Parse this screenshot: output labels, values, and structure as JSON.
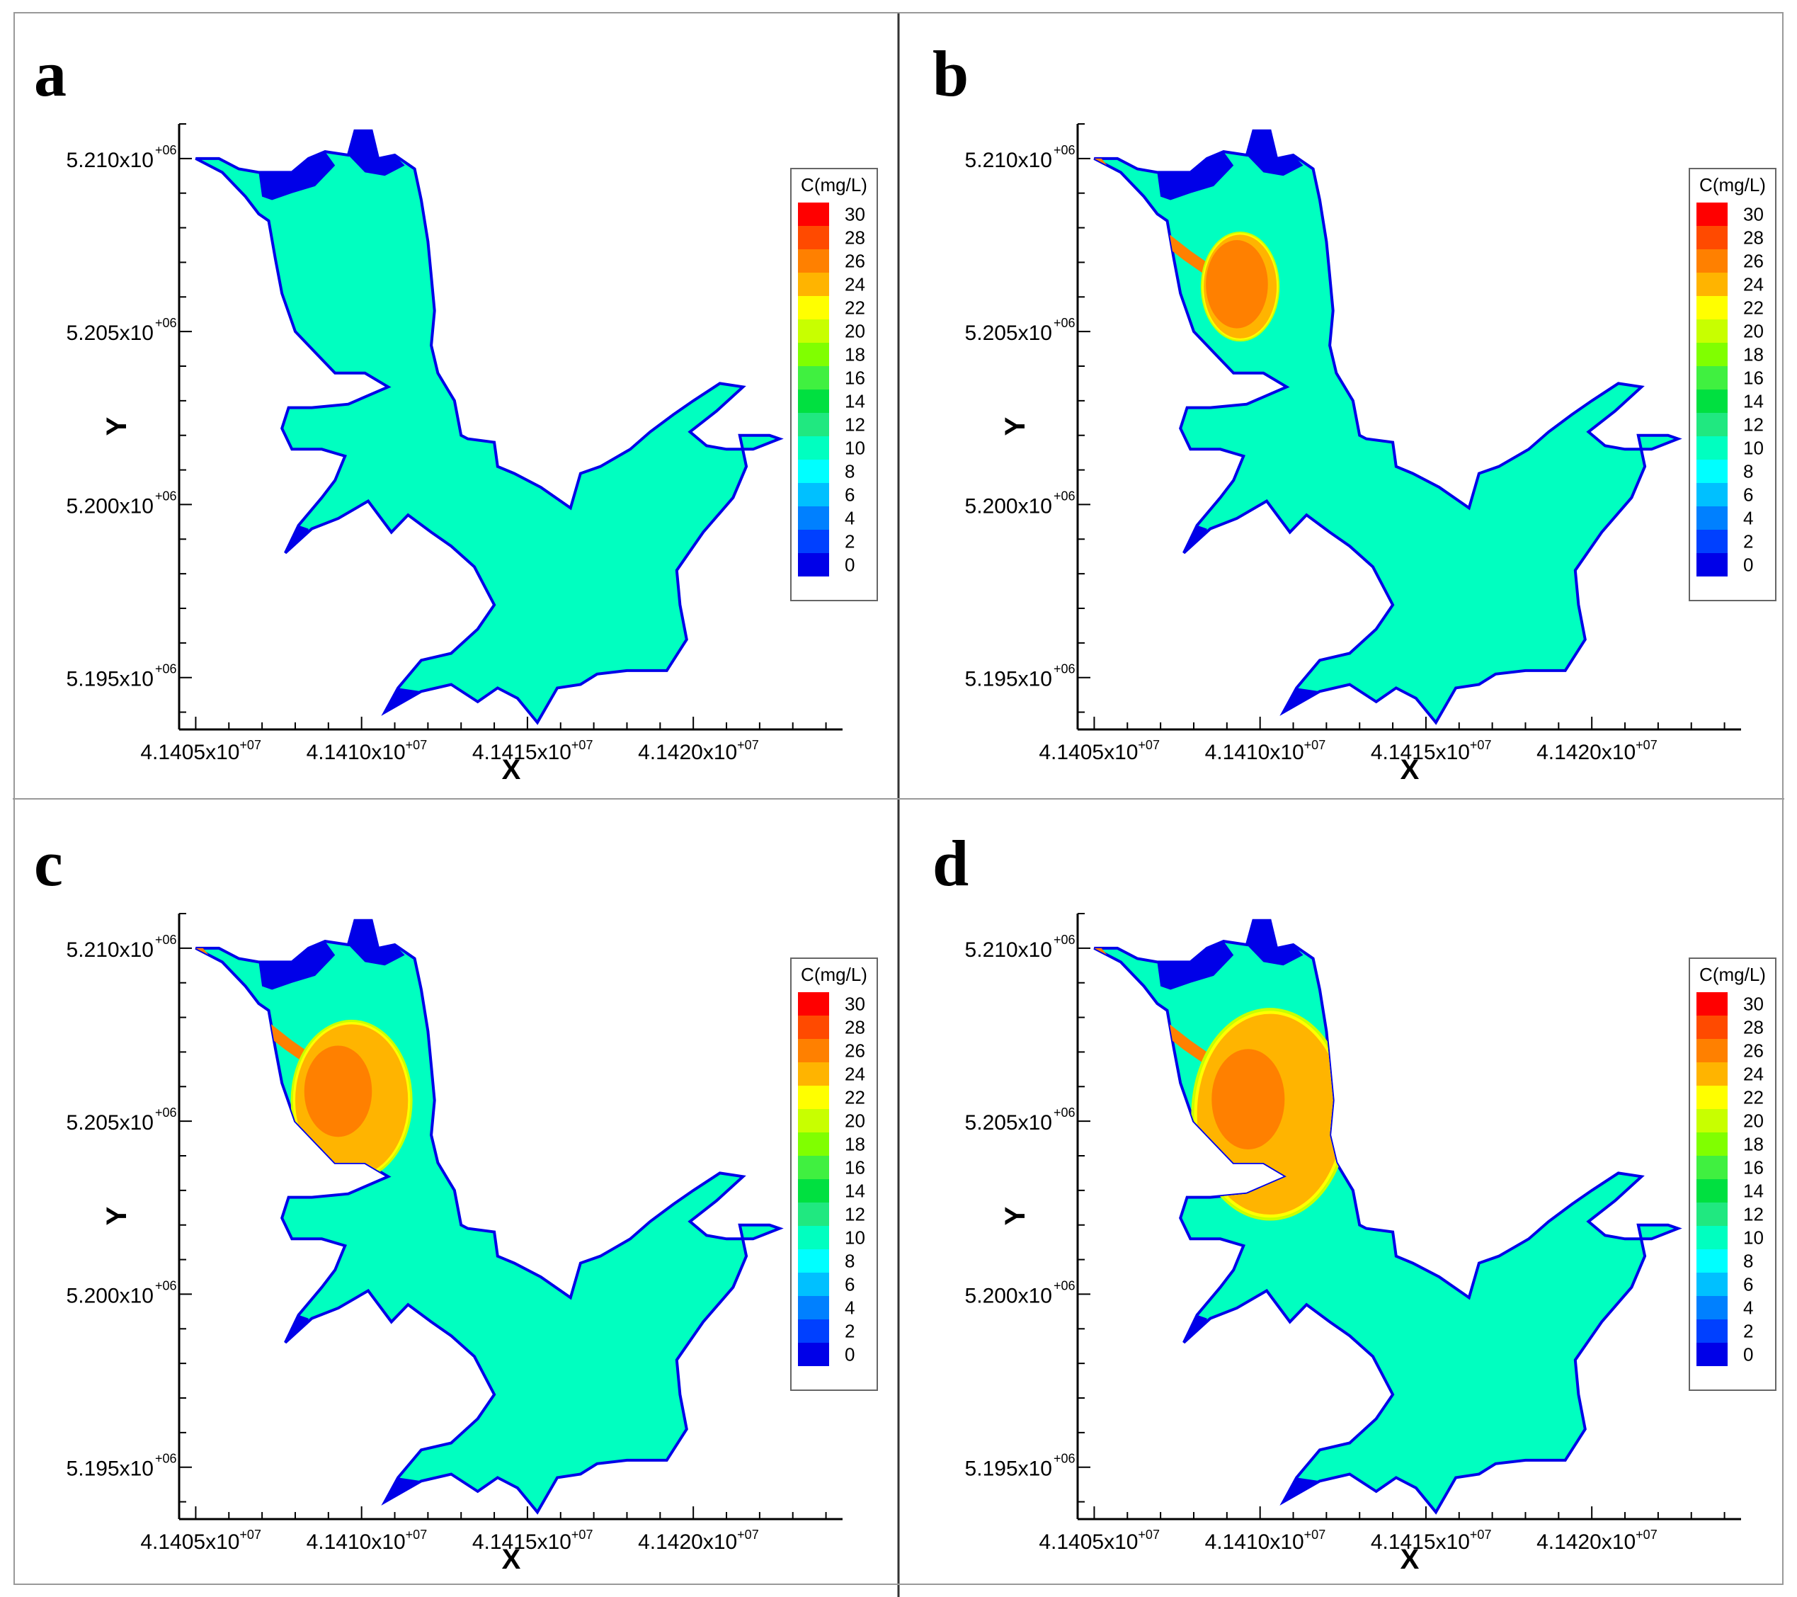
{
  "chart_data": [
    {
      "type": "heatmap",
      "panel_label": "a",
      "xlabel": "X",
      "ylabel": "Y",
      "xlim": [
        41404500,
        41424500
      ],
      "ylim": [
        5193500,
        5211000
      ],
      "xticks": [
        {
          "value": 41405000,
          "mantissa": "4.1405x10",
          "exp": "+07"
        },
        {
          "value": 41410000,
          "mantissa": "4.1410x10",
          "exp": "+07"
        },
        {
          "value": 41415000,
          "mantissa": "4.1415x10",
          "exp": "+07"
        },
        {
          "value": 41420000,
          "mantissa": "4.1420x10",
          "exp": "+07"
        }
      ],
      "yticks": [
        {
          "value": 5195000,
          "mantissa": "5.195x10",
          "exp": "+06"
        },
        {
          "value": 5200000,
          "mantissa": "5.200x10",
          "exp": "+06"
        },
        {
          "value": 5205000,
          "mantissa": "5.205x10",
          "exp": "+06"
        },
        {
          "value": 5210000,
          "mantissa": "5.210x10",
          "exp": "+06"
        }
      ],
      "plume": null
    },
    {
      "type": "heatmap",
      "panel_label": "b",
      "xlabel": "X",
      "ylabel": "Y",
      "xlim": [
        41404500,
        41424500
      ],
      "ylim": [
        5193500,
        5211000
      ],
      "xticks": [
        {
          "value": 41405000,
          "mantissa": "4.1405x10",
          "exp": "+07"
        },
        {
          "value": 41410000,
          "mantissa": "4.1410x10",
          "exp": "+07"
        },
        {
          "value": 41415000,
          "mantissa": "4.1415x10",
          "exp": "+07"
        },
        {
          "value": 41420000,
          "mantissa": "4.1420x10",
          "exp": "+07"
        }
      ],
      "yticks": [
        {
          "value": 5195000,
          "mantissa": "5.195x10",
          "exp": "+06"
        },
        {
          "value": 5200000,
          "mantissa": "5.200x10",
          "exp": "+06"
        },
        {
          "value": 5205000,
          "mantissa": "5.205x10",
          "exp": "+06"
        },
        {
          "value": 5210000,
          "mantissa": "5.210x10",
          "exp": "+06"
        }
      ],
      "plume": {
        "center": [
          41409400,
          5206300
        ],
        "radii": [
          1100,
          1500
        ],
        "peak_value": 27,
        "edge_value": 24,
        "core_fraction": 0.85
      }
    },
    {
      "type": "heatmap",
      "panel_label": "c",
      "xlabel": "X",
      "ylabel": "Y",
      "xlim": [
        41404500,
        41424500
      ],
      "ylim": [
        5193500,
        5211000
      ],
      "xticks": [
        {
          "value": 41405000,
          "mantissa": "4.1405x10",
          "exp": "+07"
        },
        {
          "value": 41410000,
          "mantissa": "4.1410x10",
          "exp": "+07"
        },
        {
          "value": 41415000,
          "mantissa": "4.1415x10",
          "exp": "+07"
        },
        {
          "value": 41420000,
          "mantissa": "4.1420x10",
          "exp": "+07"
        }
      ],
      "yticks": [
        {
          "value": 5195000,
          "mantissa": "5.195x10",
          "exp": "+06"
        },
        {
          "value": 5200000,
          "mantissa": "5.200x10",
          "exp": "+06"
        },
        {
          "value": 5205000,
          "mantissa": "5.205x10",
          "exp": "+06"
        },
        {
          "value": 5210000,
          "mantissa": "5.210x10",
          "exp": "+06"
        }
      ],
      "plume": {
        "center": [
          41409700,
          5205600
        ],
        "radii": [
          1700,
          2200
        ],
        "peak_value": 27,
        "edge_value": 25,
        "core_fraction": 0.6
      }
    },
    {
      "type": "heatmap",
      "panel_label": "d",
      "xlabel": "X",
      "ylabel": "Y",
      "xlim": [
        41404500,
        41424500
      ],
      "ylim": [
        5193500,
        5211000
      ],
      "xticks": [
        {
          "value": 41405000,
          "mantissa": "4.1405x10",
          "exp": "+07"
        },
        {
          "value": 41410000,
          "mantissa": "4.1410x10",
          "exp": "+07"
        },
        {
          "value": 41415000,
          "mantissa": "4.1415x10",
          "exp": "+07"
        },
        {
          "value": 41420000,
          "mantissa": "4.1420x10",
          "exp": "+07"
        }
      ],
      "yticks": [
        {
          "value": 5195000,
          "mantissa": "5.195x10",
          "exp": "+06"
        },
        {
          "value": 5200000,
          "mantissa": "5.200x10",
          "exp": "+06"
        },
        {
          "value": 5205000,
          "mantissa": "5.205x10",
          "exp": "+06"
        },
        {
          "value": 5210000,
          "mantissa": "5.210x10",
          "exp": "+06"
        }
      ],
      "plume": {
        "center": [
          41410300,
          5205200
        ],
        "radii": [
          2200,
          2900
        ],
        "peak_value": 27,
        "edge_value": 24,
        "core_fraction": 0.5
      }
    }
  ],
  "lake": {
    "background_value": 10,
    "outline": [
      [
        41405000,
        5210000
      ],
      [
        41405800,
        5209600
      ],
      [
        41406500,
        5208900
      ],
      [
        41406900,
        5208400
      ],
      [
        41407200,
        5208200
      ],
      [
        41407400,
        5207100
      ],
      [
        41407600,
        5206100
      ],
      [
        41408000,
        5205000
      ],
      [
        41408600,
        5204400
      ],
      [
        41409200,
        5203800
      ],
      [
        41410100,
        5203800
      ],
      [
        41410800,
        5203400
      ],
      [
        41409600,
        5202900
      ],
      [
        41408500,
        5202800
      ],
      [
        41407800,
        5202800
      ],
      [
        41407600,
        5202200
      ],
      [
        41407900,
        5201600
      ],
      [
        41408800,
        5201600
      ],
      [
        41409500,
        5201400
      ],
      [
        41409200,
        5200700
      ],
      [
        41408800,
        5200200
      ],
      [
        41408100,
        5199400
      ],
      [
        41407700,
        5198600
      ],
      [
        41408500,
        5199300
      ],
      [
        41409300,
        5199600
      ],
      [
        41410200,
        5200100
      ],
      [
        41410900,
        5199200
      ],
      [
        41411400,
        5199700
      ],
      [
        41412100,
        5199200
      ],
      [
        41412700,
        5198800
      ],
      [
        41413400,
        5198200
      ],
      [
        41414000,
        5197100
      ],
      [
        41413500,
        5196400
      ],
      [
        41412700,
        5195700
      ],
      [
        41411800,
        5195500
      ],
      [
        41411100,
        5194700
      ],
      [
        41410700,
        5194000
      ],
      [
        41411800,
        5194600
      ],
      [
        41412700,
        5194800
      ],
      [
        41413500,
        5194300
      ],
      [
        41414100,
        5194700
      ],
      [
        41414700,
        5194400
      ],
      [
        41415300,
        5193700
      ],
      [
        41415900,
        5194700
      ],
      [
        41416600,
        5194800
      ],
      [
        41417100,
        5195100
      ],
      [
        41418000,
        5195200
      ],
      [
        41419200,
        5195200
      ],
      [
        41419800,
        5196100
      ],
      [
        41419600,
        5197100
      ],
      [
        41419500,
        5198100
      ],
      [
        41420300,
        5199200
      ],
      [
        41421200,
        5200200
      ],
      [
        41421600,
        5201100
      ],
      [
        41421400,
        5202000
      ],
      [
        41422300,
        5202000
      ],
      [
        41422600,
        5201900
      ],
      [
        41421800,
        5201600
      ],
      [
        41421000,
        5201600
      ],
      [
        41420400,
        5201700
      ],
      [
        41419900,
        5202100
      ],
      [
        41420700,
        5202700
      ],
      [
        41421500,
        5203400
      ],
      [
        41420800,
        5203500
      ],
      [
        41420000,
        5203000
      ],
      [
        41419400,
        5202600
      ],
      [
        41418700,
        5202100
      ],
      [
        41418100,
        5201600
      ],
      [
        41417200,
        5201100
      ],
      [
        41416600,
        5200900
      ],
      [
        41416300,
        5199900
      ],
      [
        41415400,
        5200500
      ],
      [
        41414600,
        5200900
      ],
      [
        41414100,
        5201100
      ],
      [
        41414000,
        5201800
      ],
      [
        41413200,
        5201900
      ],
      [
        41413000,
        5202000
      ],
      [
        41412800,
        5203000
      ],
      [
        41412300,
        5203800
      ],
      [
        41412100,
        5204600
      ],
      [
        41412200,
        5205600
      ],
      [
        41412100,
        5206600
      ],
      [
        41412000,
        5207600
      ],
      [
        41411800,
        5208800
      ],
      [
        41411600,
        5209700
      ],
      [
        41411000,
        5210100
      ],
      [
        41410500,
        5210000
      ],
      [
        41410300,
        5210800
      ],
      [
        41409800,
        5210800
      ],
      [
        41409600,
        5210100
      ],
      [
        41408900,
        5210200
      ],
      [
        41408400,
        5210000
      ],
      [
        41407900,
        5209600
      ],
      [
        41407400,
        5209600
      ],
      [
        41406900,
        5209600
      ],
      [
        41406300,
        5209700
      ],
      [
        41405700,
        5210000
      ]
    ],
    "low_regions": [
      [
        [
          41405000,
          5210000
        ],
        [
          41405800,
          5209600
        ],
        [
          41406500,
          5208900
        ],
        [
          41406900,
          5208400
        ],
        [
          41407200,
          5208200
        ],
        [
          41407000,
          5207500
        ],
        [
          41406800,
          5207000
        ],
        [
          41406400,
          5207200
        ],
        [
          41406200,
          5208000
        ],
        [
          41405700,
          5208800
        ],
        [
          41405200,
          5209500
        ]
      ],
      [
        [
          41406900,
          5209600
        ],
        [
          41407400,
          5209600
        ],
        [
          41407900,
          5209600
        ],
        [
          41408400,
          5210000
        ],
        [
          41408900,
          5210200
        ],
        [
          41409200,
          5209800
        ],
        [
          41408600,
          5209200
        ],
        [
          41407900,
          5209000
        ],
        [
          41407300,
          5208800
        ],
        [
          41407000,
          5208900
        ]
      ],
      [
        [
          41409600,
          5210100
        ],
        [
          41409800,
          5210800
        ],
        [
          41410300,
          5210800
        ],
        [
          41410500,
          5210000
        ],
        [
          41411000,
          5210100
        ],
        [
          41411300,
          5209800
        ],
        [
          41410700,
          5209500
        ],
        [
          41410100,
          5209600
        ]
      ],
      [
        [
          41407700,
          5198600
        ],
        [
          41408100,
          5199400
        ],
        [
          41408400,
          5199300
        ],
        [
          41408300,
          5198700
        ]
      ],
      [
        [
          41410700,
          5194000
        ],
        [
          41411100,
          5194700
        ],
        [
          41411800,
          5194600
        ],
        [
          41411500,
          5194300
        ]
      ]
    ],
    "channel": [
      [
        41405000,
        5210000
      ],
      [
        41405600,
        5209300
      ],
      [
        41406300,
        5208500
      ],
      [
        41407000,
        5207800
      ],
      [
        41407800,
        5207200
      ],
      [
        41408400,
        5206800
      ]
    ]
  },
  "legend": {
    "title": "C(mg/L)",
    "labels": [
      "30",
      "28",
      "26",
      "24",
      "22",
      "20",
      "18",
      "16",
      "14",
      "12",
      "10",
      "8",
      "6",
      "4",
      "2",
      "0"
    ],
    "levels": [
      30,
      28,
      26,
      24,
      22,
      20,
      18,
      16,
      14,
      12,
      10,
      8,
      6,
      4,
      2,
      0
    ],
    "colors": [
      "#ff0000",
      "#ff4a00",
      "#ff8000",
      "#ffb400",
      "#ffff00",
      "#c8ff00",
      "#80ff00",
      "#40f040",
      "#00e040",
      "#20e880",
      "#00ffc0",
      "#00ffff",
      "#00c0ff",
      "#0080ff",
      "#0040ff",
      "#0000e8"
    ]
  }
}
